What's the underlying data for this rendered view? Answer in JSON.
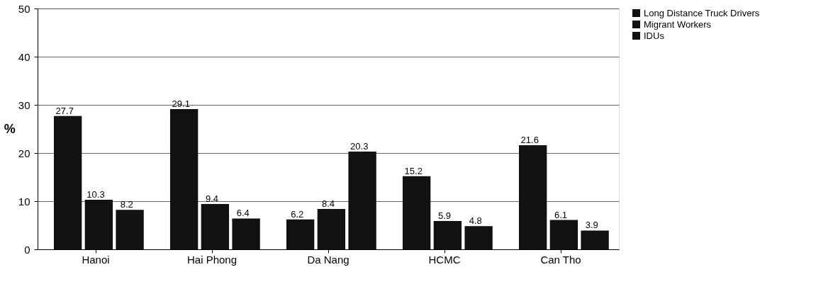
{
  "chart_data": {
    "type": "bar",
    "ylabel": "%",
    "categories": [
      "Hanoi",
      "Hai Phong",
      "Da Nang",
      "HCMC",
      "Can Tho"
    ],
    "series": [
      {
        "name": "Long Distance Truck Drivers",
        "color": "#111111",
        "values": [
          27.7,
          29.1,
          6.2,
          15.2,
          21.6
        ]
      },
      {
        "name": "Migrant Workers",
        "color": "#111111",
        "values": [
          10.3,
          9.4,
          8.4,
          5.9,
          6.1
        ]
      },
      {
        "name": "IDUs",
        "color": "#111111",
        "values": [
          8.2,
          6.4,
          20.3,
          4.8,
          3.9
        ]
      }
    ],
    "ylim": [
      0,
      50
    ],
    "yticks": [
      0,
      10,
      20,
      30,
      40,
      50
    ],
    "grid": "y",
    "legend": "top right",
    "data_labels": true
  }
}
